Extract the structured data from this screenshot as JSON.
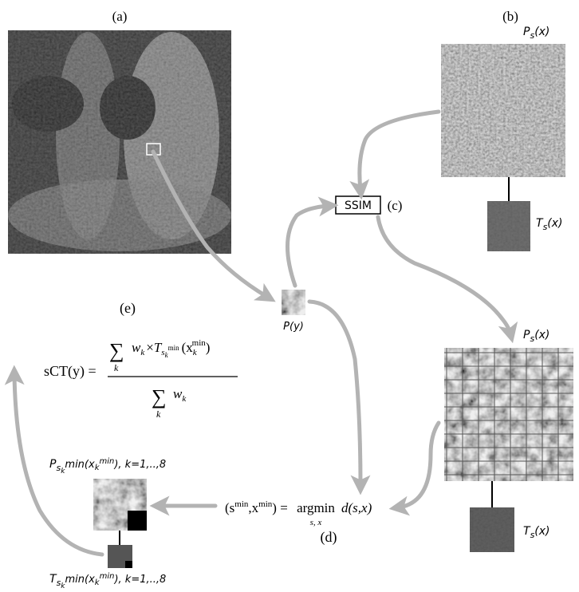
{
  "panels": {
    "a": "(a)",
    "b": "(b)",
    "c": "(c)",
    "d": "(d)",
    "e": "(e)"
  },
  "ssim": "SSIM",
  "patch_labels": {
    "p_top": {
      "base": "P",
      "sub": "s",
      "arg": "(x)"
    },
    "t_top": {
      "base": "T",
      "sub": "s",
      "arg": "(x)"
    },
    "p_bottom": {
      "base": "P",
      "sub": "s",
      "arg": "(x)"
    },
    "t_bottom": {
      "base": "T",
      "sub": "s",
      "arg": "(x)"
    },
    "p_y": "P(y)",
    "p_selected": {
      "base": "P",
      "sub": "s",
      "subsub": "k",
      "sub2": "min(x",
      "sub3": "k",
      "sub4": "min",
      "rest": "), k=1,..,8"
    },
    "t_selected": {
      "base": "T",
      "sub": "s",
      "subsub": "k",
      "sub2": "min(x",
      "sub3": "k",
      "sub4": "min",
      "rest": "), k=1,..,8"
    }
  },
  "formula_e": {
    "lhs": "sCT(y) =",
    "num_sum": "∑",
    "num_sum_index": "k",
    "num_w": "w",
    "num_w_index": "k",
    "num_times": "×",
    "num_T": "T",
    "num_T_sub": "s",
    "num_T_subsub": "k",
    "num_T_supsub": "min",
    "num_arg_open": "(x",
    "num_arg_sub": "k",
    "num_arg_sup": "min",
    "num_arg_close": ")",
    "den_sum": "∑",
    "den_sum_index": "k",
    "den_w": "w",
    "den_w_index": "k"
  },
  "formula_d": {
    "lhs_open": "(s",
    "lhs_sup1": "min",
    "lhs_mid": ",x",
    "lhs_sup2": "min",
    "lhs_close": ") =",
    "op": "argmin",
    "op_index": "s, x",
    "rhs": "d(s,x)"
  }
}
